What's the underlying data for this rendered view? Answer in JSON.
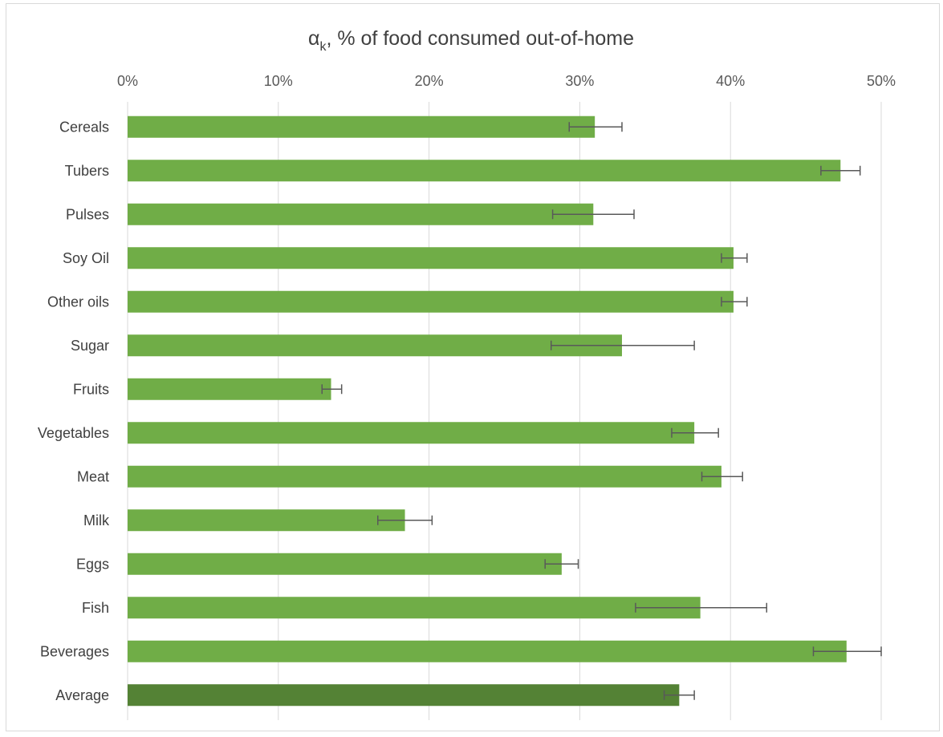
{
  "chart_data": {
    "type": "bar",
    "orientation": "horizontal",
    "title_main": "α",
    "title_sub": "k",
    "title_rest": ", % of food consumed out-of-home",
    "xlim": [
      0,
      0.5
    ],
    "xticks": [
      "0%",
      "10%",
      "20%",
      "30%",
      "40%",
      "50%"
    ],
    "axis_position": "top",
    "grid": true,
    "categories": [
      "Cereals",
      "Tubers",
      "Pulses",
      "Soy Oil",
      "Other oils",
      "Sugar",
      "Fruits",
      "Vegetables",
      "Meat",
      "Milk",
      "Eggs",
      "Fish",
      "Beverages",
      "Average"
    ],
    "values": [
      0.31,
      0.473,
      0.309,
      0.402,
      0.402,
      0.328,
      0.135,
      0.376,
      0.394,
      0.184,
      0.288,
      0.38,
      0.477,
      0.366
    ],
    "error_low": [
      0.293,
      0.46,
      0.282,
      0.394,
      0.394,
      0.281,
      0.129,
      0.361,
      0.381,
      0.166,
      0.277,
      0.337,
      0.455,
      0.356
    ],
    "error_high": [
      0.328,
      0.486,
      0.336,
      0.411,
      0.411,
      0.376,
      0.142,
      0.392,
      0.408,
      0.202,
      0.299,
      0.424,
      0.5,
      0.376
    ],
    "colors": {
      "bar": "#70ad47",
      "highlight_bar": "#548235",
      "gridline": "#d9d9d9",
      "error_bar": "#595959"
    },
    "highlight_category": "Average"
  }
}
